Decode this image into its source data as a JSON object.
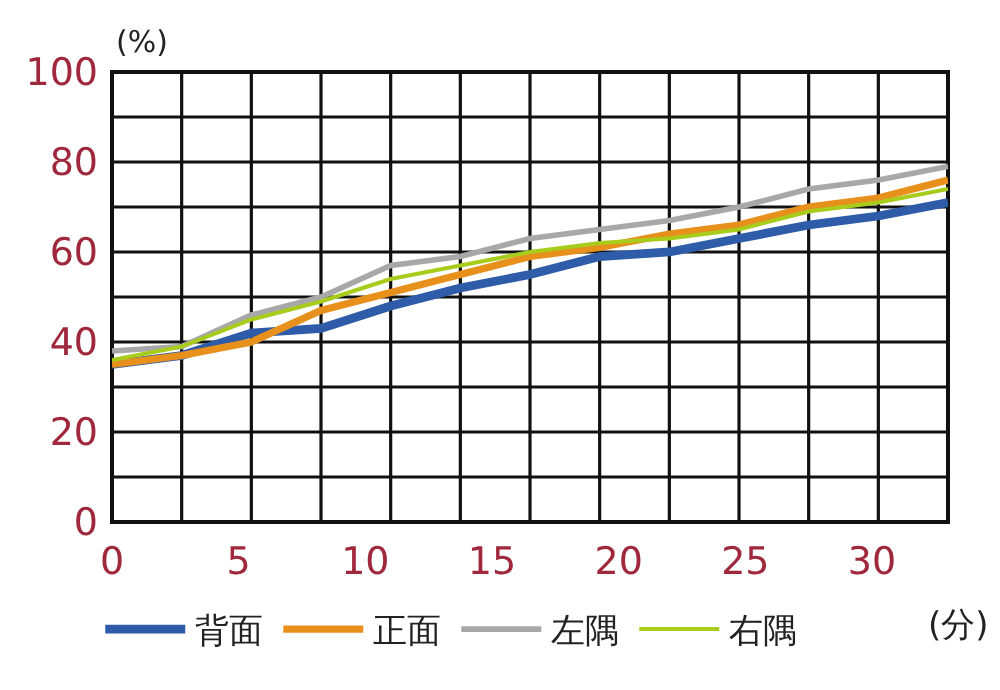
{
  "chart_data": {
    "type": "line",
    "xlabel": "(分)",
    "ylabel": "(%)",
    "x": [
      0,
      2.75,
      5.5,
      8.25,
      11,
      13.75,
      16.5,
      19.25,
      22,
      24.75,
      27.5,
      30.25,
      33
    ],
    "series": [
      {
        "name": "背面",
        "color": "#2e5ca8",
        "values": [
          35,
          37,
          42,
          43,
          48,
          52,
          55,
          59,
          60,
          63,
          66,
          68,
          71
        ]
      },
      {
        "name": "正面",
        "color": "#e8901c",
        "values": [
          35,
          37,
          40,
          47,
          51,
          55,
          59,
          61,
          64,
          66,
          70,
          72,
          76
        ]
      },
      {
        "name": "左隅",
        "color": "#a8a8a8",
        "values": [
          38,
          39,
          46,
          50,
          57,
          59,
          63,
          65,
          67,
          70,
          74,
          76,
          79
        ]
      },
      {
        "name": "右隅",
        "color": "#a8cc1c",
        "values": [
          36,
          39,
          45,
          49,
          54,
          57,
          60,
          62,
          63,
          65,
          69,
          71,
          74
        ]
      }
    ],
    "xlim": [
      0,
      33
    ],
    "xticks": [
      0,
      {
        "value": 2.75,
        "label": null
      },
      5,
      {
        "value": 5.5,
        "label": null
      },
      {
        "value": 8.25,
        "label": null
      },
      10,
      {
        "value": 11,
        "label": null
      },
      {
        "value": 13.75,
        "label": null
      },
      15,
      {
        "value": 16.5,
        "label": null
      },
      {
        "value": 19.25,
        "label": null
      },
      20,
      {
        "value": 22,
        "label": null
      },
      {
        "value": 24.75,
        "label": null
      },
      25,
      {
        "value": 27.5,
        "label": null
      },
      {
        "value": 30.25,
        "label": null
      },
      30,
      {
        "value": 33,
        "label": null
      }
    ],
    "ylim": [
      0,
      100
    ],
    "yticks": [
      0,
      {
        "value": 10,
        "label": null
      },
      20,
      {
        "value": 30,
        "label": null
      },
      40,
      {
        "value": 50,
        "label": null
      },
      60,
      {
        "value": 70,
        "label": null
      },
      80,
      {
        "value": 90,
        "label": null
      },
      100
    ],
    "grid": true,
    "legend": "bottom",
    "marker": "none",
    "line_style": "solid"
  }
}
